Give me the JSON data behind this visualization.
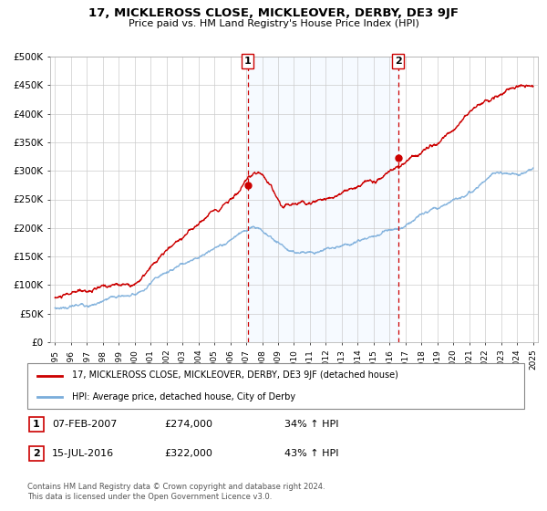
{
  "title": "17, MICKLEROSS CLOSE, MICKLEOVER, DERBY, DE3 9JF",
  "subtitle": "Price paid vs. HM Land Registry's House Price Index (HPI)",
  "line1_label": "17, MICKLEROSS CLOSE, MICKLEOVER, DERBY, DE3 9JF (detached house)",
  "line2_label": "HPI: Average price, detached house, City of Derby",
  "line1_color": "#cc0000",
  "line2_color": "#7aaddb",
  "shaded_color": "#ddeeff",
  "marker1_date": 2007.1,
  "marker2_date": 2016.54,
  "marker1_price": 274000,
  "marker2_price": 322000,
  "vline_color": "#cc0000",
  "footer": "Contains HM Land Registry data © Crown copyright and database right 2024.\nThis data is licensed under the Open Government Licence v3.0.",
  "ylim": [
    0,
    500000
  ],
  "yticks": [
    0,
    50000,
    100000,
    150000,
    200000,
    250000,
    300000,
    350000,
    400000,
    450000,
    500000
  ],
  "ytick_labels": [
    "£0",
    "£50K",
    "£100K",
    "£150K",
    "£200K",
    "£250K",
    "£300K",
    "£350K",
    "£400K",
    "£450K",
    "£500K"
  ],
  "xlim_start": 1994.7,
  "xlim_end": 2025.3,
  "xticks": [
    1995,
    1996,
    1997,
    1998,
    1999,
    2000,
    2001,
    2002,
    2003,
    2004,
    2005,
    2006,
    2007,
    2008,
    2009,
    2010,
    2011,
    2012,
    2013,
    2014,
    2015,
    2016,
    2017,
    2018,
    2019,
    2020,
    2021,
    2022,
    2023,
    2024,
    2025
  ]
}
